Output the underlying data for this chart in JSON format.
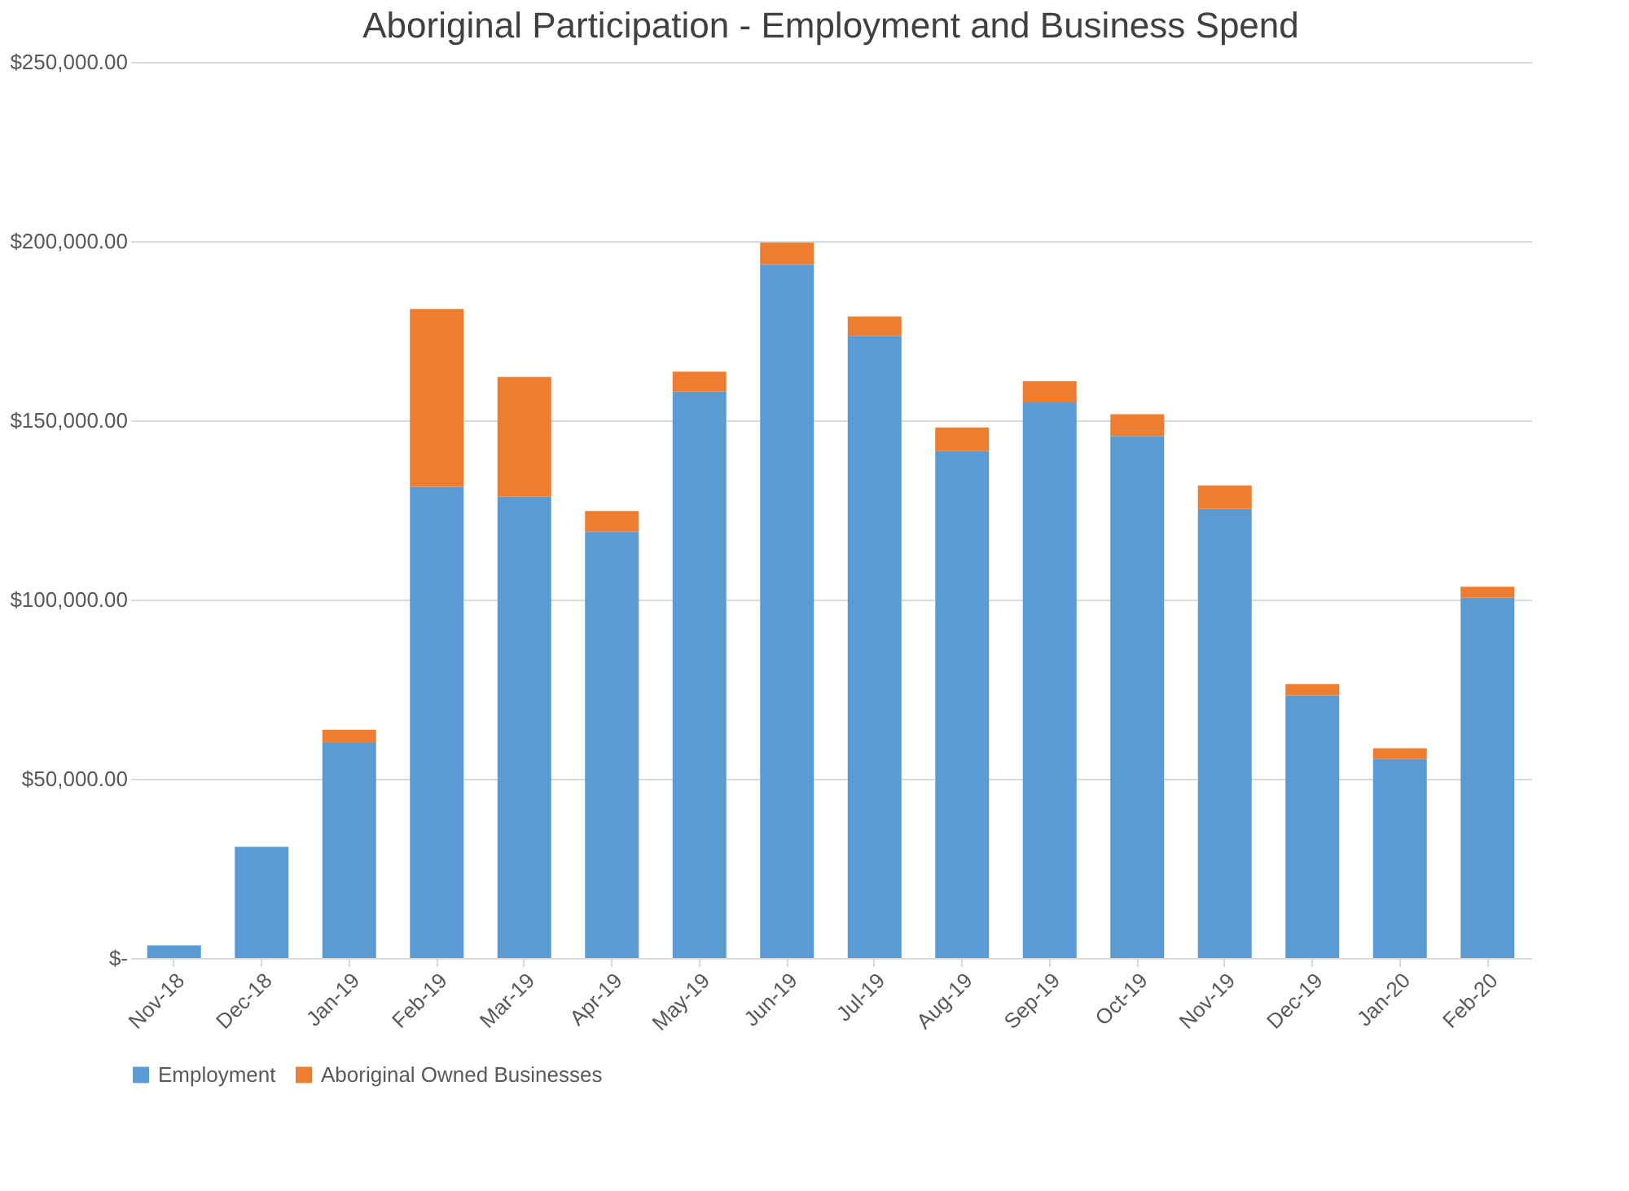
{
  "chart_data": {
    "type": "bar",
    "title": "Aboriginal Participation - Employment and Business Spend",
    "stacked": true,
    "categories": [
      "Nov-18",
      "Dec-18",
      "Jan-19",
      "Feb-19",
      "Mar-19",
      "Apr-19",
      "May-19",
      "Jun-19",
      "Jul-19",
      "Aug-19",
      "Sep-19",
      "Oct-19",
      "Nov-19",
      "Dec-19",
      "Jan-20",
      "Feb-20"
    ],
    "series": [
      {
        "name": "Employment",
        "color": "#5b9bd5",
        "values": [
          3500,
          31000,
          60000,
          131500,
          128700,
          119000,
          158000,
          193500,
          173600,
          141400,
          155000,
          145600,
          125300,
          73300,
          55500,
          100500
        ]
      },
      {
        "name": "Aboriginal Owned Businesses",
        "color": "#ed7d31",
        "values": [
          0,
          0,
          3700,
          49600,
          33400,
          5700,
          5600,
          6100,
          5400,
          6600,
          5900,
          6100,
          6500,
          3100,
          3000,
          3100
        ]
      }
    ],
    "ylim": [
      0,
      250000
    ],
    "yticks": [
      {
        "value": 0,
        "label": "$-"
      },
      {
        "value": 50000,
        "label": "$50,000.00"
      },
      {
        "value": 100000,
        "label": "$100,000.00"
      },
      {
        "value": 150000,
        "label": "$150,000.00"
      },
      {
        "value": 200000,
        "label": "$200,000.00"
      },
      {
        "value": 250000,
        "label": "$250,000.00"
      }
    ],
    "grid": "y",
    "legend": "bottom"
  }
}
